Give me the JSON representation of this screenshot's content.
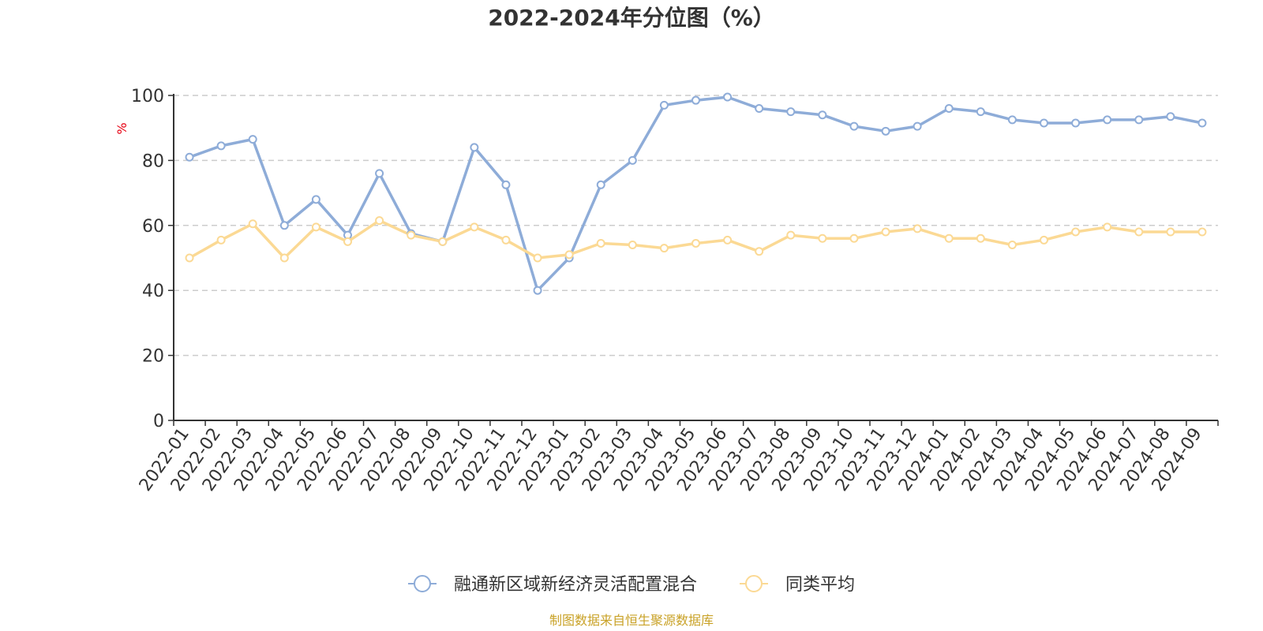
{
  "chart_data": {
    "type": "line",
    "title": "2022-2024年分位图（%）",
    "ylabel": "%",
    "ylim": [
      0,
      100
    ],
    "yticks": [
      0,
      20,
      40,
      60,
      80,
      100
    ],
    "grid": true,
    "legend_position": "bottom",
    "categories": [
      "2022-01",
      "2022-02",
      "2022-03",
      "2022-04",
      "2022-05",
      "2022-06",
      "2022-07",
      "2022-08",
      "2022-09",
      "2022-10",
      "2022-11",
      "2022-12",
      "2023-01",
      "2023-02",
      "2023-03",
      "2023-04",
      "2023-05",
      "2023-06",
      "2023-07",
      "2023-08",
      "2023-09",
      "2023-10",
      "2023-11",
      "2023-12",
      "2024-01",
      "2024-02",
      "2024-03",
      "2024-04",
      "2024-05",
      "2024-06",
      "2024-07",
      "2024-08",
      "2024-09"
    ],
    "series": [
      {
        "name": "融通新区域新经济灵活配置混合",
        "color": "#8eacd8",
        "values": [
          81,
          84.5,
          86.5,
          60,
          68,
          57,
          76,
          57.5,
          55,
          84,
          72.5,
          40,
          50,
          72.5,
          80,
          97,
          98.5,
          99.5,
          96,
          95,
          94,
          90.5,
          89,
          90.5,
          96,
          95,
          92.5,
          91.5,
          91.5,
          92.5,
          92.5,
          93.5,
          91.5
        ]
      },
      {
        "name": "同类平均",
        "color": "#fbd994",
        "values": [
          50,
          55.5,
          60.5,
          50,
          59.5,
          55,
          61.5,
          57,
          55,
          59.5,
          55.5,
          50,
          51,
          54.5,
          54,
          53,
          54.5,
          55.5,
          52,
          57,
          56,
          56,
          58,
          59,
          56,
          56,
          54,
          55.5,
          58,
          59.5,
          58,
          58,
          58
        ]
      }
    ],
    "source": "制图数据来自恒生聚源数据库"
  }
}
